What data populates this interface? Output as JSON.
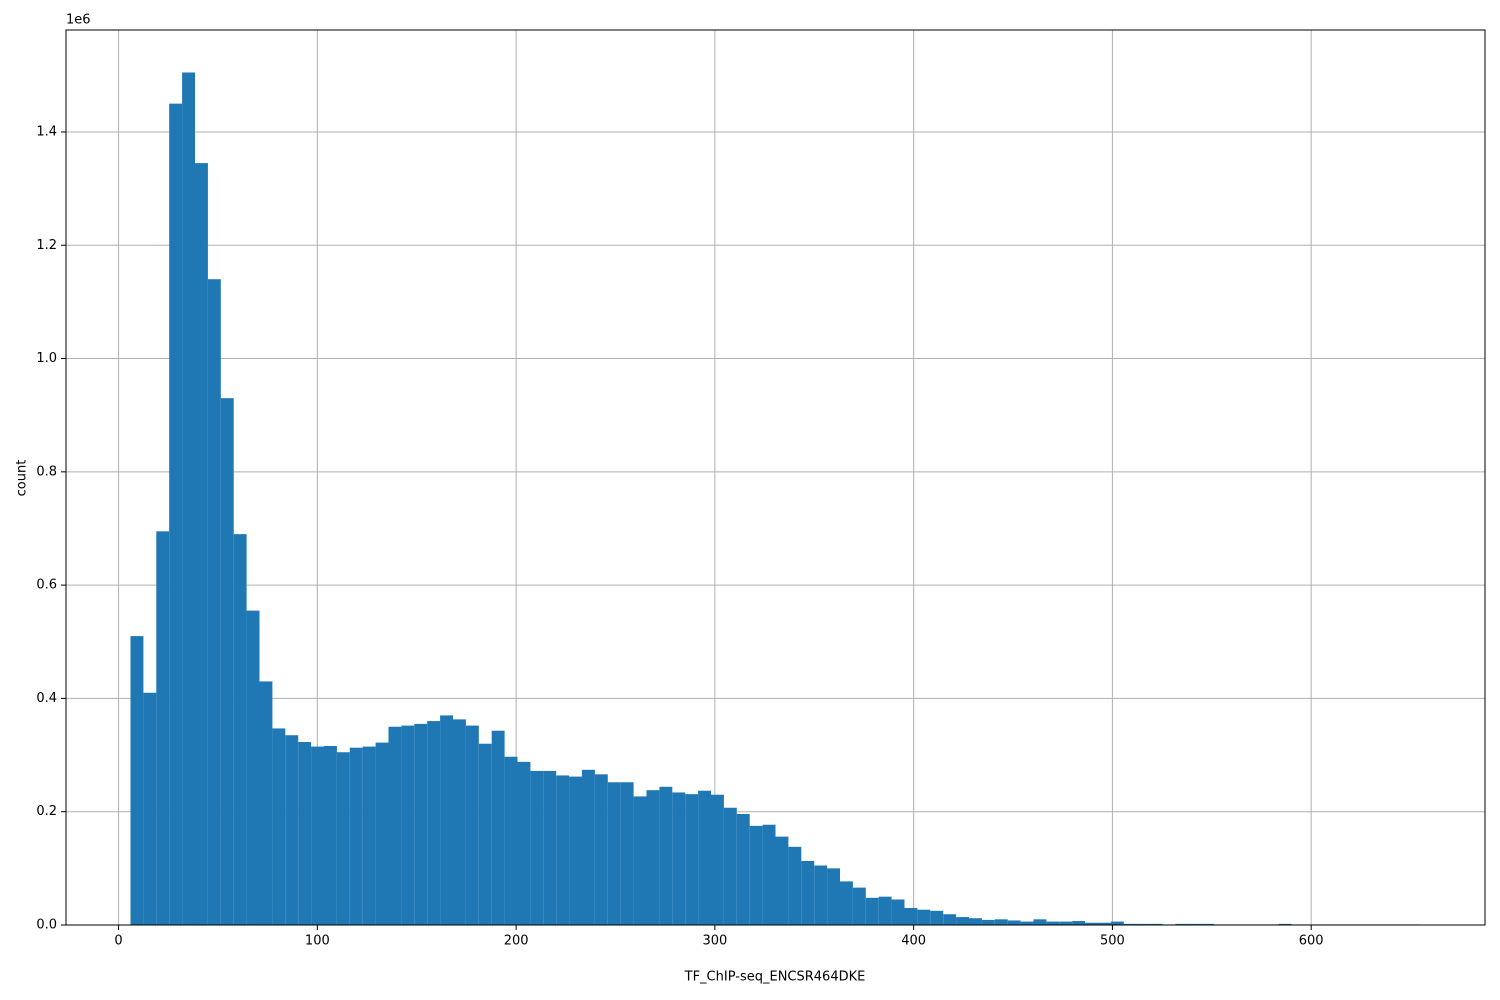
{
  "chart_data": {
    "type": "histogram",
    "x_label": "TF_ChIP-seq_ENCSR464DKE",
    "y_label": "count",
    "y_offset_label": "1e6",
    "color": "#1f77b4",
    "grid": true,
    "bins": [
      6,
      12.49,
      18.98,
      25.47,
      31.96,
      38.45,
      44.94,
      51.43,
      57.92,
      64.41,
      70.9,
      77.39,
      83.88,
      90.37,
      96.86,
      103.35,
      109.84,
      116.33,
      122.82,
      129.31,
      135.8,
      142.29,
      148.78,
      155.27,
      161.76,
      168.25,
      174.74,
      181.23,
      187.72,
      194.21,
      200.7,
      207.19,
      213.68,
      220.17,
      226.66,
      233.15,
      239.64,
      246.13,
      252.62,
      259.11,
      265.6,
      272.09,
      278.58,
      285.07,
      291.56,
      298.05,
      304.54,
      311.03,
      317.52,
      324.01,
      330.5,
      336.99,
      343.48,
      349.97,
      356.46,
      362.95,
      369.44,
      375.93,
      382.42,
      388.91,
      395.4,
      401.89,
      408.38,
      414.87,
      421.36,
      427.85,
      434.34,
      440.83,
      447.32,
      453.81,
      460.3,
      466.79,
      473.28,
      479.77,
      486.26,
      492.75,
      499.24,
      505.73,
      512.22,
      518.71,
      525.2,
      531.69,
      538.18,
      544.67,
      551.16,
      557.65,
      564.14,
      570.63,
      577.12,
      583.61,
      590.1,
      596.59,
      603.08,
      609.57,
      616.06,
      622.55,
      629.04,
      635.53,
      642.02,
      648.51,
      655
    ],
    "values": [
      0.51,
      0.41,
      0.695,
      1.45,
      1.505,
      1.345,
      1.14,
      0.93,
      0.69,
      0.555,
      0.43,
      0.347,
      0.335,
      0.323,
      0.315,
      0.316,
      0.305,
      0.313,
      0.315,
      0.322,
      0.35,
      0.352,
      0.355,
      0.36,
      0.37,
      0.363,
      0.352,
      0.32,
      0.343,
      0.297,
      0.288,
      0.272,
      0.272,
      0.264,
      0.262,
      0.274,
      0.266,
      0.252,
      0.252,
      0.227,
      0.238,
      0.244,
      0.234,
      0.231,
      0.237,
      0.23,
      0.207,
      0.196,
      0.175,
      0.177,
      0.156,
      0.138,
      0.113,
      0.105,
      0.1,
      0.077,
      0.066,
      0.048,
      0.05,
      0.045,
      0.03,
      0.027,
      0.025,
      0.019,
      0.014,
      0.012,
      0.009,
      0.01,
      0.008,
      0.006,
      0.01,
      0.006,
      0.006,
      0.007,
      0.004,
      0.004,
      0.006,
      0.002,
      0.002,
      0.002,
      0.001,
      0.002,
      0.002,
      0.002,
      0.001,
      0.001,
      0.001,
      0.001,
      0.001,
      0.002,
      0.001,
      0.001,
      0.001,
      0.001,
      0.001,
      0.001,
      0.001,
      0.001,
      0.001,
      0.001
    ],
    "xlim": [
      -26.45,
      687.45
    ],
    "xticks": [
      0,
      100,
      200,
      300,
      400,
      500,
      600
    ],
    "ylim": [
      0,
      1.58
    ],
    "yticks": [
      {
        "value": 0,
        "label": "0.0"
      },
      {
        "value": 0.2,
        "label": "0.2"
      },
      {
        "value": 0.4,
        "label": "0.4"
      },
      {
        "value": 0.6,
        "label": "0.6"
      },
      {
        "value": 0.8,
        "label": "0.8"
      },
      {
        "value": 1.0,
        "label": "1.0"
      },
      {
        "value": 1.2,
        "label": "1.2"
      },
      {
        "value": 1.4,
        "label": "1.4"
      }
    ]
  }
}
